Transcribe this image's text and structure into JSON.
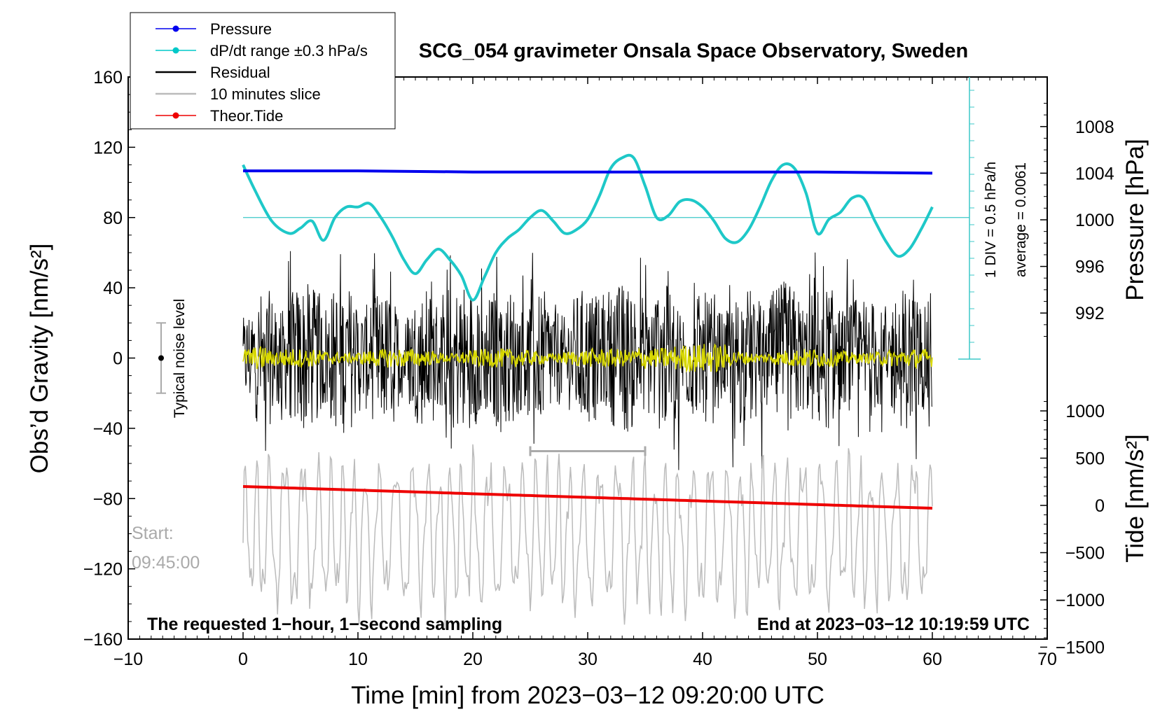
{
  "chart_data": {
    "type": "line",
    "title": "SCG_054 gravimeter Onsala Space Observatory, Sweden",
    "xlabel": "Time [min] from 2023−03−12 09:20:00 UTC",
    "xlim": [
      -10,
      70
    ],
    "xticks": [
      "−10",
      "0",
      "10",
      "20",
      "30",
      "40",
      "50",
      "60",
      "70"
    ],
    "left_axis": {
      "label": "Obs’d Gravity [nm/s²]",
      "ylim": [
        -160,
        160
      ],
      "ticks": [
        "160",
        "120",
        "80",
        "40",
        "0",
        "−40",
        "−80",
        "−120",
        "−160"
      ]
    },
    "pressure_axis": {
      "label": "Pressure [hPa]",
      "ticks": [
        "1008",
        "1004",
        "1000",
        "996",
        "992"
      ],
      "tick_values": [
        1008,
        1004,
        1000,
        996,
        992
      ]
    },
    "tide_axis": {
      "label": "Tide [nm/s²]",
      "ticks": [
        "1000",
        "500",
        "0",
        "−500",
        "−1000",
        "−1500"
      ],
      "tick_values": [
        1000,
        500,
        0,
        -500,
        -1000,
        -1500
      ]
    },
    "legend": {
      "position": "top-left",
      "entries": [
        {
          "name": "Pressure",
          "color": "#0000ee",
          "marker": true
        },
        {
          "name": "dP/dt range ±0.3 hPa/s",
          "color": "#00c8c8",
          "marker": true
        },
        {
          "name": "Residual",
          "color": "#000000",
          "marker": false
        },
        {
          "name": "10 minutes slice",
          "color": "#bbbbbb",
          "marker": false
        },
        {
          "name": "Theor.Tide",
          "color": "#ee0000",
          "marker": true
        }
      ]
    },
    "series": [
      {
        "name": "Pressure",
        "axis": "pressure",
        "color": "#0000ee",
        "x": [
          0,
          10,
          20,
          30,
          40,
          50,
          60
        ],
        "values": [
          1004.2,
          1004.2,
          1004.1,
          1004.1,
          1004.1,
          1004.1,
          1004.0
        ]
      },
      {
        "name": "dP/dt",
        "axis": "gravity",
        "color": "#1ec8c8",
        "x": [
          0,
          1,
          2.5,
          4,
          5,
          6,
          7,
          8,
          9,
          10,
          11,
          12,
          13,
          14,
          15,
          16,
          17,
          18,
          19,
          20,
          21,
          22,
          23,
          24,
          25,
          26,
          27,
          28,
          29,
          30,
          31,
          32,
          33,
          34,
          35,
          36,
          37,
          38,
          39,
          40,
          41,
          42,
          43,
          44,
          45,
          46,
          47,
          48,
          49,
          50,
          51,
          52,
          53,
          54,
          55,
          56,
          57,
          58,
          59,
          60
        ],
        "values": [
          110,
          96,
          78,
          71,
          74,
          78,
          67,
          80,
          86,
          86,
          88,
          80,
          69,
          56,
          48,
          56,
          62,
          56,
          47,
          33,
          46,
          60,
          68,
          73,
          80,
          84,
          78,
          71,
          73,
          79,
          92,
          108,
          114,
          114,
          98,
          80,
          81,
          89,
          90,
          86,
          78,
          68,
          66,
          73,
          86,
          101,
          110,
          108,
          94,
          71,
          79,
          83,
          91,
          91,
          78,
          66,
          58,
          62,
          73,
          86
        ]
      },
      {
        "name": "Residual",
        "axis": "gravity",
        "color": "#000000",
        "note": "1-second residual, amplitude approx ±40 nm/s² around 0"
      },
      {
        "name": "Residual (smoothed)",
        "axis": "gravity",
        "color": "#d8d800",
        "note": "smoothed residual, approx ±5 nm/s² around 0"
      },
      {
        "name": "10 minutes slice",
        "axis": "gravity",
        "color": "#bbbbbb",
        "note": "oscillating slice around −100 nm/s², range approx −155 to −50"
      },
      {
        "name": "Theor.Tide",
        "axis": "tide",
        "color": "#ee0000",
        "x": [
          0,
          60
        ],
        "values": [
          200,
          -30
        ]
      }
    ],
    "annotations": {
      "noise_label": "Typical noise level",
      "noise_range": [
        -20,
        20
      ],
      "pressure_scale_line1": "1 DIV = 0.5 hPa/h",
      "pressure_scale_line2": "average = 0.0061",
      "dpdt_reference_level": 80,
      "start_label": "Start:",
      "start_time": "09:45:00",
      "slice_bracket_minutes": [
        25,
        35
      ],
      "slice_bracket_level": -53,
      "bottom_left": "The requested 1−hour, 1−second sampling",
      "bottom_right": "End at 2023−03−12 10:19:59 UTC"
    }
  }
}
